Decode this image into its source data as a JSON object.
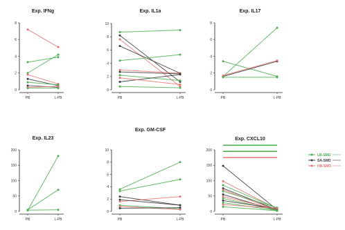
{
  "colors": {
    "LB": "#4caf50",
    "SA": "#3a3a3a",
    "HB": "#e57373",
    "axis": "#222222"
  },
  "legend": [
    {
      "label": "LB-SMD",
      "group": "LB",
      "color": "#4caf50"
    },
    {
      "label": "SA-SMD",
      "group": "SA",
      "color": "#3a3a3a"
    },
    {
      "label": "HB-SMD",
      "group": "HB",
      "color": "#e57373"
    }
  ],
  "chart_data": [
    {
      "type": "line",
      "title": "Exp. IFNg",
      "categories": [
        "PB",
        "L-PB"
      ],
      "ylim": [
        0,
        8
      ],
      "yticks": [
        "0",
        "2",
        "4",
        "6",
        "8"
      ],
      "series": [
        {
          "group": "HB",
          "values": [
            7.2,
            5.1
          ]
        },
        {
          "group": "LB",
          "values": [
            3.3,
            3.9
          ]
        },
        {
          "group": "LB",
          "values": [
            2.0,
            4.2
          ]
        },
        {
          "group": "HB",
          "values": [
            1.8,
            0.7
          ]
        },
        {
          "group": "SA",
          "values": [
            1.3,
            0.5
          ]
        },
        {
          "group": "LB",
          "values": [
            0.9,
            0.6
          ]
        },
        {
          "group": "SA",
          "values": [
            0.5,
            0.3
          ]
        },
        {
          "group": "HB",
          "values": [
            0.3,
            0.4
          ]
        },
        {
          "group": "LB",
          "values": [
            0.2,
            0.2
          ]
        }
      ]
    },
    {
      "type": "line",
      "title": "Exp. IL1a",
      "categories": [
        "PB",
        "L-PB"
      ],
      "ylim": [
        0,
        10
      ],
      "yticks": [
        "0",
        "2",
        "4",
        "6",
        "8",
        "10"
      ],
      "series": [
        {
          "group": "LB",
          "values": [
            8.7,
            9.0
          ]
        },
        {
          "group": "SA",
          "values": [
            8.2,
            1.2
          ]
        },
        {
          "group": "HB",
          "values": [
            7.6,
            0.5
          ]
        },
        {
          "group": "SA",
          "values": [
            6.6,
            2.5
          ]
        },
        {
          "group": "LB",
          "values": [
            4.4,
            5.3
          ]
        },
        {
          "group": "HB",
          "values": [
            3.0,
            2.5
          ]
        },
        {
          "group": "SA",
          "values": [
            2.7,
            2.4
          ]
        },
        {
          "group": "LB",
          "values": [
            2.2,
            1.4
          ]
        },
        {
          "group": "SA",
          "values": [
            1.2,
            2.3
          ]
        },
        {
          "group": "HB",
          "values": [
            1.8,
            0.8
          ]
        },
        {
          "group": "LB",
          "values": [
            0.5,
            0.3
          ]
        }
      ]
    },
    {
      "type": "line",
      "title": "Exp. IL17",
      "categories": [
        "PB",
        "L-PB"
      ],
      "ylim": [
        0,
        8
      ],
      "yticks": [
        "0",
        "2",
        "4",
        "6",
        "8"
      ],
      "series": [
        {
          "group": "LB",
          "values": [
            1.6,
            7.4
          ]
        },
        {
          "group": "LB",
          "values": [
            3.4,
            1.6
          ]
        },
        {
          "group": "SA",
          "values": [
            1.6,
            3.4
          ]
        },
        {
          "group": "HB",
          "values": [
            1.7,
            3.5
          ]
        },
        {
          "group": "LB",
          "values": [
            1.5,
            1.5
          ]
        }
      ]
    },
    {
      "type": "line",
      "title": "Exp. IL23",
      "categories": [
        "PB",
        "L-PB"
      ],
      "ylim": [
        0,
        200
      ],
      "yticks": [
        "0",
        "50",
        "100",
        "150",
        "200"
      ],
      "series": [
        {
          "group": "LB",
          "values": [
            3,
            180
          ]
        },
        {
          "group": "LB",
          "values": [
            5,
            70
          ]
        },
        {
          "group": "LB",
          "values": [
            4,
            5
          ]
        }
      ]
    },
    {
      "type": "line",
      "title": "Exp. GM-CSF",
      "categories": [
        "PB",
        "L-PB"
      ],
      "ylim": [
        0,
        10
      ],
      "yticks": [
        "0",
        "2",
        "4",
        "6",
        "8",
        "10"
      ],
      "series": [
        {
          "group": "LB",
          "values": [
            3.6,
            8.0
          ]
        },
        {
          "group": "LB",
          "values": [
            3.3,
            5.2
          ]
        },
        {
          "group": "SA",
          "values": [
            2.4,
            1.0
          ]
        },
        {
          "group": "HB",
          "values": [
            1.6,
            2.4
          ]
        },
        {
          "group": "SA",
          "values": [
            1.9,
            1.0
          ]
        },
        {
          "group": "LB",
          "values": [
            1.0,
            0.4
          ]
        },
        {
          "group": "HB",
          "values": [
            0.8,
            0.3
          ]
        },
        {
          "group": "SA",
          "values": [
            0.5,
            0.6
          ]
        }
      ]
    },
    {
      "type": "line",
      "title": "Exp. CXCL10",
      "categories": [
        "PB",
        "L-PB"
      ],
      "ylim": [
        0,
        200
      ],
      "yticks": [
        "0",
        "50",
        "100",
        "150",
        "200"
      ],
      "hlines": [
        {
          "group": "LB",
          "value": 215
        },
        {
          "group": "LB",
          "value": 195
        },
        {
          "group": "HB",
          "value": 175
        }
      ],
      "series": [
        {
          "group": "SA",
          "values": [
            148,
            5
          ]
        },
        {
          "group": "HB",
          "values": [
            98,
            8
          ]
        },
        {
          "group": "LB",
          "values": [
            85,
            10
          ]
        },
        {
          "group": "SA",
          "values": [
            75,
            5
          ]
        },
        {
          "group": "HB",
          "values": [
            70,
            3
          ]
        },
        {
          "group": "LB",
          "values": [
            65,
            12
          ]
        },
        {
          "group": "SA",
          "values": [
            55,
            2
          ]
        },
        {
          "group": "HB",
          "values": [
            48,
            6
          ]
        },
        {
          "group": "LB",
          "values": [
            42,
            4
          ]
        },
        {
          "group": "SA",
          "values": [
            35,
            8
          ]
        },
        {
          "group": "LB",
          "values": [
            28,
            3
          ]
        },
        {
          "group": "HB",
          "values": [
            22,
            10
          ]
        },
        {
          "group": "LB",
          "values": [
            15,
            2
          ]
        }
      ]
    }
  ]
}
